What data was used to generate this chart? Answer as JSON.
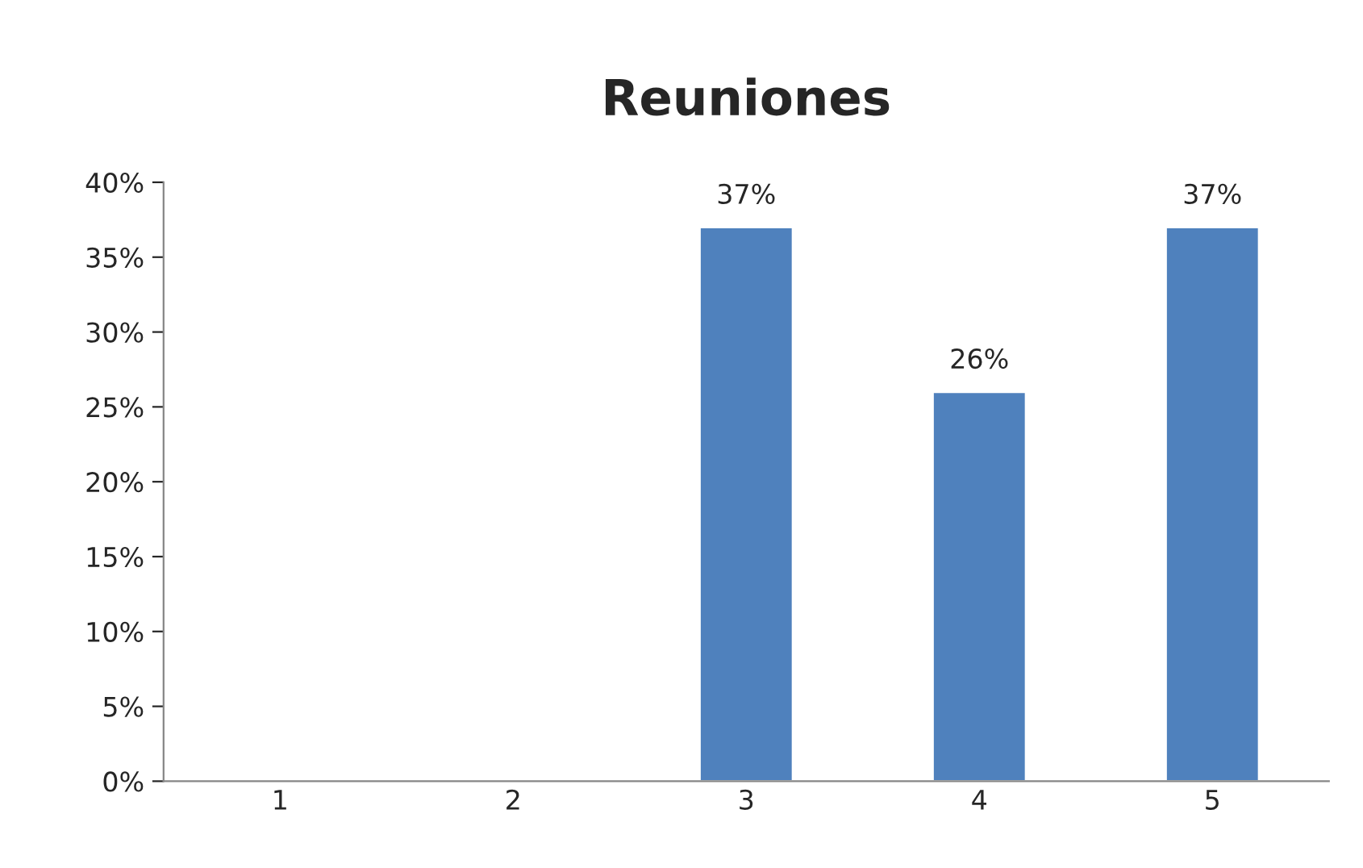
{
  "chart_data": {
    "type": "bar",
    "title": "Reuniones",
    "categories": [
      "1",
      "2",
      "3",
      "4",
      "5"
    ],
    "values": [
      null,
      null,
      37,
      26,
      37
    ],
    "value_labels": [
      null,
      null,
      "37%",
      "26%",
      "37%"
    ],
    "color": "#4f81bd",
    "ylim": [
      0,
      40
    ],
    "yticks": [
      {
        "value": 0,
        "label": "0%"
      },
      {
        "value": 5,
        "label": "5%"
      },
      {
        "value": 10,
        "label": "10%"
      },
      {
        "value": 15,
        "label": "15%"
      },
      {
        "value": 20,
        "label": "20%"
      },
      {
        "value": 25,
        "label": "25%"
      },
      {
        "value": 30,
        "label": "30%"
      },
      {
        "value": 35,
        "label": "35%"
      },
      {
        "value": 40,
        "label": "40%"
      }
    ],
    "grid": false
  }
}
